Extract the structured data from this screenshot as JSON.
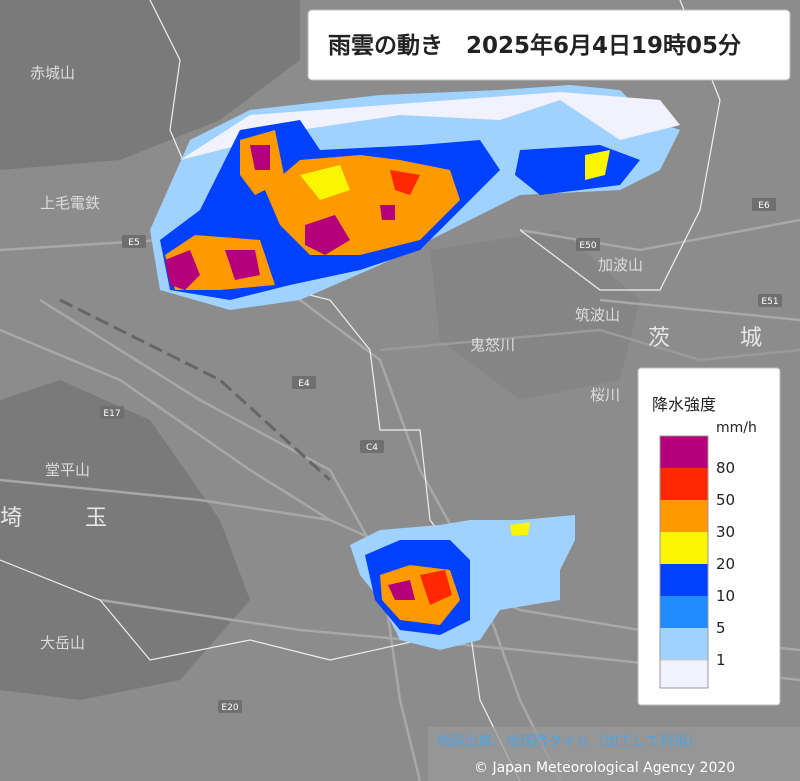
{
  "header": {
    "title": "雨雲の動き　2025年6月4日19時05分"
  },
  "legend": {
    "title": "降水強度",
    "unit": "mm/h",
    "levels": [
      {
        "label": "80",
        "color": "#b4007a"
      },
      {
        "label": "50",
        "color": "#ff2800"
      },
      {
        "label": "30",
        "color": "#ff9900"
      },
      {
        "label": "20",
        "color": "#faf500"
      },
      {
        "label": "10",
        "color": "#0041ff"
      },
      {
        "label": "5",
        "color": "#218cff"
      },
      {
        "label": "1",
        "color": "#a0d2ff"
      }
    ],
    "bottom_color": "#f2f2ff"
  },
  "map_labels": {
    "places": [
      "赤城山",
      "上毛電鉄",
      "加波山",
      "筑波山",
      "茨",
      "城",
      "玉",
      "埼",
      "大岳山",
      "堂平山",
      "桜川",
      "鬼怒川"
    ],
    "roads": [
      "E50",
      "E51",
      "E6",
      "E17",
      "E4",
      "C4",
      "E20",
      "E5"
    ]
  },
  "attribution": {
    "source": "地図出典：地理院タイル（加工して利用）",
    "copyright": "© Japan Meteorological Agency 2020"
  }
}
